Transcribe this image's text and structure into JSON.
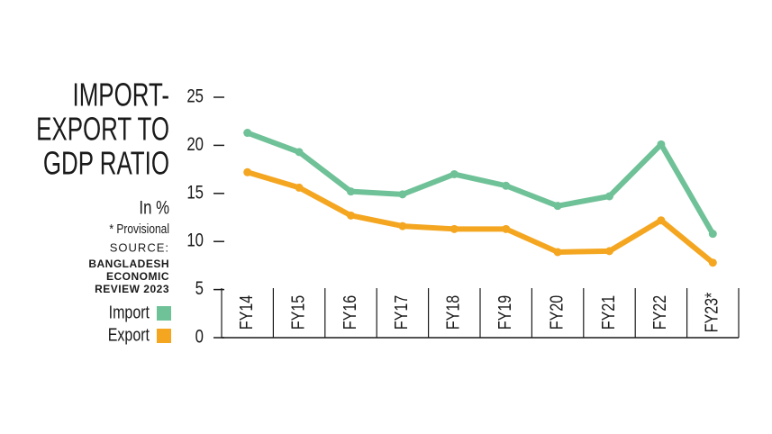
{
  "chart_data": {
    "type": "line",
    "title_lines": [
      "IMPORT-",
      "EXPORT TO",
      "GDP RATIO"
    ],
    "subtitle": "In %",
    "note": "* Provisional",
    "source_label": "SOURCE:",
    "source_lines": [
      "BANGLADESH",
      "ECONOMIC",
      "REVIEW 2023"
    ],
    "categories": [
      "FY14",
      "FY15",
      "FY16",
      "FY17",
      "FY18",
      "FY19",
      "FY20",
      "FY21",
      "FY22",
      "FY23*"
    ],
    "series": [
      {
        "name": "Import",
        "color": "#6fc197",
        "values": [
          21.3,
          19.3,
          15.2,
          14.9,
          17.0,
          15.8,
          13.7,
          14.7,
          20.1,
          10.8
        ]
      },
      {
        "name": "Export",
        "color": "#f4a620",
        "values": [
          17.2,
          15.6,
          12.7,
          11.6,
          11.3,
          11.3,
          8.9,
          9.0,
          12.2,
          7.8
        ]
      }
    ],
    "ylim": [
      0,
      25
    ],
    "yticks": [
      0,
      5,
      10,
      15,
      20,
      25
    ],
    "legend": "left"
  }
}
